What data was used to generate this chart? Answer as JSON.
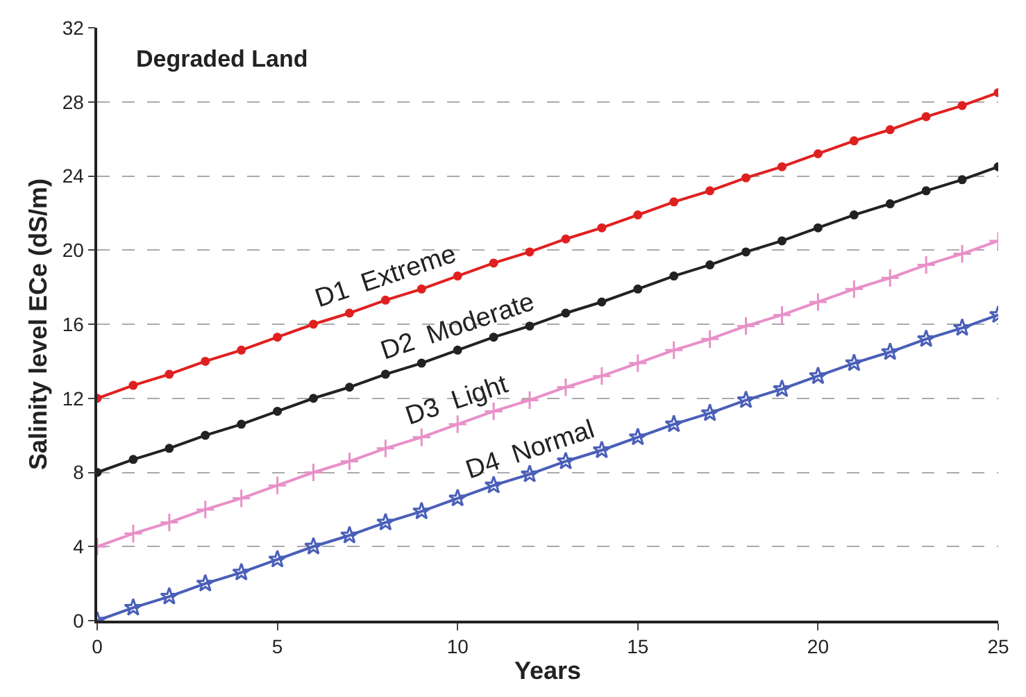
{
  "chart_data": {
    "type": "line",
    "title": "Degraded Land",
    "xlabel": "Years",
    "ylabel": "Salinity level ECe (dS/m)",
    "x": [
      0,
      1,
      2,
      3,
      4,
      5,
      6,
      7,
      8,
      9,
      10,
      11,
      12,
      13,
      14,
      15,
      16,
      17,
      18,
      19,
      20,
      21,
      22,
      23,
      24,
      25
    ],
    "series": [
      {
        "name": "D1  Extreme",
        "color": "#e02020",
        "marker": "circle",
        "values": [
          12,
          12.7,
          13.3,
          14.0,
          14.6,
          15.3,
          16.0,
          16.6,
          17.3,
          17.9,
          18.6,
          19.3,
          19.9,
          20.6,
          21.2,
          21.9,
          22.6,
          23.2,
          23.9,
          24.5,
          25.2,
          25.9,
          26.5,
          27.2,
          27.8,
          28.5
        ]
      },
      {
        "name": "D2  Moderate",
        "color": "#222222",
        "marker": "circle",
        "values": [
          8,
          8.7,
          9.3,
          10.0,
          10.6,
          11.3,
          12.0,
          12.6,
          13.3,
          13.9,
          14.6,
          15.3,
          15.9,
          16.6,
          17.2,
          17.9,
          18.6,
          19.2,
          19.9,
          20.5,
          21.2,
          21.9,
          22.5,
          23.2,
          23.8,
          24.5
        ]
      },
      {
        "name": "D3  Light",
        "color": "#e890c8",
        "marker": "cross",
        "values": [
          4,
          4.7,
          5.3,
          6.0,
          6.6,
          7.3,
          8.0,
          8.6,
          9.3,
          9.9,
          10.6,
          11.3,
          11.9,
          12.6,
          13.2,
          13.9,
          14.6,
          15.2,
          15.9,
          16.5,
          17.2,
          17.9,
          18.5,
          19.2,
          19.8,
          20.5
        ]
      },
      {
        "name": "D4  Normal",
        "color": "#4a5fb8",
        "marker": "star",
        "values": [
          0,
          0.7,
          1.3,
          2.0,
          2.6,
          3.3,
          4.0,
          4.6,
          5.3,
          5.9,
          6.6,
          7.3,
          7.9,
          8.6,
          9.2,
          9.9,
          10.6,
          11.2,
          11.9,
          12.5,
          13.2,
          13.9,
          14.5,
          15.2,
          15.8,
          16.5
        ]
      }
    ],
    "xlim": [
      0,
      25
    ],
    "xticks": [
      0,
      5,
      10,
      15,
      20,
      25
    ],
    "ylim": [
      0,
      32
    ],
    "yticks": [
      0,
      4,
      8,
      12,
      16,
      20,
      24,
      28,
      32
    ],
    "grid": "y",
    "legend": false,
    "line_style": "solid"
  }
}
